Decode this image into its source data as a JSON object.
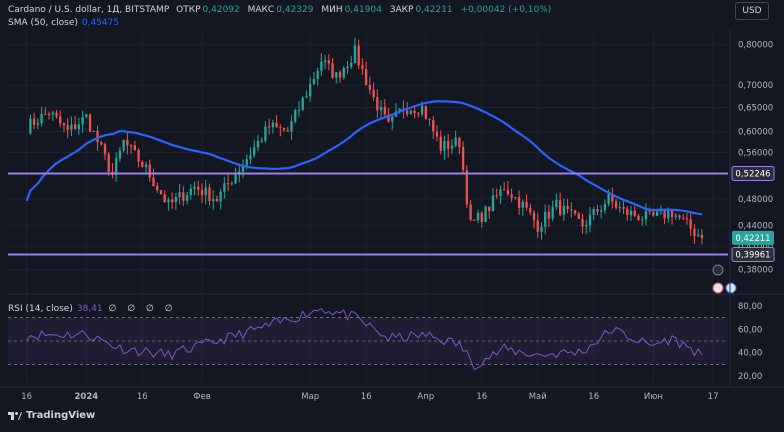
{
  "header": {
    "symbol": "Cardano / U.S. dollar, 1Д, BITSTAMP",
    "open_label": "ОТКР",
    "open": "0,42092",
    "high_label": "МАКС",
    "high": "0,42329",
    "low_label": "МИН",
    "low": "0,41904",
    "close_label": "ЗАКР",
    "close": "0,42211",
    "change": "+0,00042 (+0,10%)",
    "currency_button": "USD"
  },
  "indicators": {
    "sma_label": "SMA (50, close)",
    "sma_value": "0,45475",
    "rsi_label": "RSI (14, close)",
    "rsi_value": "38,41",
    "rsi_extra": "∅ ∅ ∅ ∅"
  },
  "branding": {
    "name": "TradingView"
  },
  "colors": {
    "background": "#131722",
    "up": "#26a69a",
    "down": "#ef5350",
    "sma": "#2962ff",
    "levels": "#9c7ce8",
    "rsi": "#7e57c2"
  },
  "chart_data": [
    {
      "type": "candlestick",
      "title": "Cardano / U.S. dollar, 1Д, BITSTAMP",
      "x_ticks": [
        "16",
        "2024",
        "16",
        "Фев",
        "Мар",
        "16",
        "Апр",
        "16",
        "Май",
        "16",
        "Июн",
        "17"
      ],
      "y_ticks": [
        "0,80000",
        "0,70000",
        "0,65000",
        "0,60000",
        "0,56000",
        "0,52000",
        "0,48000",
        "0,44000",
        "0,41000",
        "0,38000"
      ],
      "ylim": [
        0.36,
        0.84
      ],
      "log_scale": true,
      "horizontal_levels": [
        {
          "value": 0.52246,
          "label": "0,52246"
        },
        {
          "value": 0.39961,
          "label": "0,39961"
        }
      ],
      "last_price": {
        "value": 0.42211,
        "label": "0,42211"
      },
      "sma_last": {
        "value": 0.45475
      },
      "anchors": [
        {
          "date": "2023-12-16",
          "close": 0.61
        },
        {
          "date": "2023-12-22",
          "close": 0.64
        },
        {
          "date": "2023-12-27",
          "close": 0.6
        },
        {
          "date": "2024-01-01",
          "close": 0.63
        },
        {
          "date": "2024-01-08",
          "close": 0.52
        },
        {
          "date": "2024-01-11",
          "close": 0.58
        },
        {
          "date": "2024-01-17",
          "close": 0.53
        },
        {
          "date": "2024-01-23",
          "close": 0.47
        },
        {
          "date": "2024-01-30",
          "close": 0.5
        },
        {
          "date": "2024-02-05",
          "close": 0.48
        },
        {
          "date": "2024-02-12",
          "close": 0.54
        },
        {
          "date": "2024-02-19",
          "close": 0.61
        },
        {
          "date": "2024-02-24",
          "close": 0.6
        },
        {
          "date": "2024-03-01",
          "close": 0.7
        },
        {
          "date": "2024-03-04",
          "close": 0.76
        },
        {
          "date": "2024-03-08",
          "close": 0.72
        },
        {
          "date": "2024-03-13",
          "close": 0.78
        },
        {
          "date": "2024-03-18",
          "close": 0.67
        },
        {
          "date": "2024-03-22",
          "close": 0.61
        },
        {
          "date": "2024-03-26",
          "close": 0.65
        },
        {
          "date": "2024-03-31",
          "close": 0.65
        },
        {
          "date": "2024-04-05",
          "close": 0.57
        },
        {
          "date": "2024-04-10",
          "close": 0.58
        },
        {
          "date": "2024-04-13",
          "close": 0.44
        },
        {
          "date": "2024-04-17",
          "close": 0.46
        },
        {
          "date": "2024-04-22",
          "close": 0.5
        },
        {
          "date": "2024-04-27",
          "close": 0.47
        },
        {
          "date": "2024-05-01",
          "close": 0.44
        },
        {
          "date": "2024-05-06",
          "close": 0.47
        },
        {
          "date": "2024-05-13",
          "close": 0.44
        },
        {
          "date": "2024-05-20",
          "close": 0.48
        },
        {
          "date": "2024-05-24",
          "close": 0.46
        },
        {
          "date": "2024-05-31",
          "close": 0.45
        },
        {
          "date": "2024-06-06",
          "close": 0.46
        },
        {
          "date": "2024-06-10",
          "close": 0.44
        },
        {
          "date": "2024-06-14",
          "close": 0.42211
        }
      ]
    },
    {
      "type": "line",
      "title": "RSI (14, close)",
      "y_ticks": [
        "80,00",
        "60,00",
        "40,00",
        "20,00"
      ],
      "ylim": [
        15,
        85
      ],
      "band": [
        30,
        70
      ],
      "midline": 50,
      "last_value": 38.41,
      "anchors": [
        {
          "date": "2023-12-16",
          "value": 55
        },
        {
          "date": "2024-01-01",
          "value": 56
        },
        {
          "date": "2024-01-10",
          "value": 44
        },
        {
          "date": "2024-01-23",
          "value": 38
        },
        {
          "date": "2024-02-05",
          "value": 50
        },
        {
          "date": "2024-02-20",
          "value": 64
        },
        {
          "date": "2024-03-04",
          "value": 78
        },
        {
          "date": "2024-03-13",
          "value": 70
        },
        {
          "date": "2024-03-22",
          "value": 52
        },
        {
          "date": "2024-04-01",
          "value": 55
        },
        {
          "date": "2024-04-10",
          "value": 47
        },
        {
          "date": "2024-04-14",
          "value": 30
        },
        {
          "date": "2024-04-22",
          "value": 43
        },
        {
          "date": "2024-05-01",
          "value": 38
        },
        {
          "date": "2024-05-13",
          "value": 41
        },
        {
          "date": "2024-05-21",
          "value": 60
        },
        {
          "date": "2024-05-31",
          "value": 46
        },
        {
          "date": "2024-06-06",
          "value": 52
        },
        {
          "date": "2024-06-14",
          "value": 38.41
        }
      ]
    }
  ]
}
